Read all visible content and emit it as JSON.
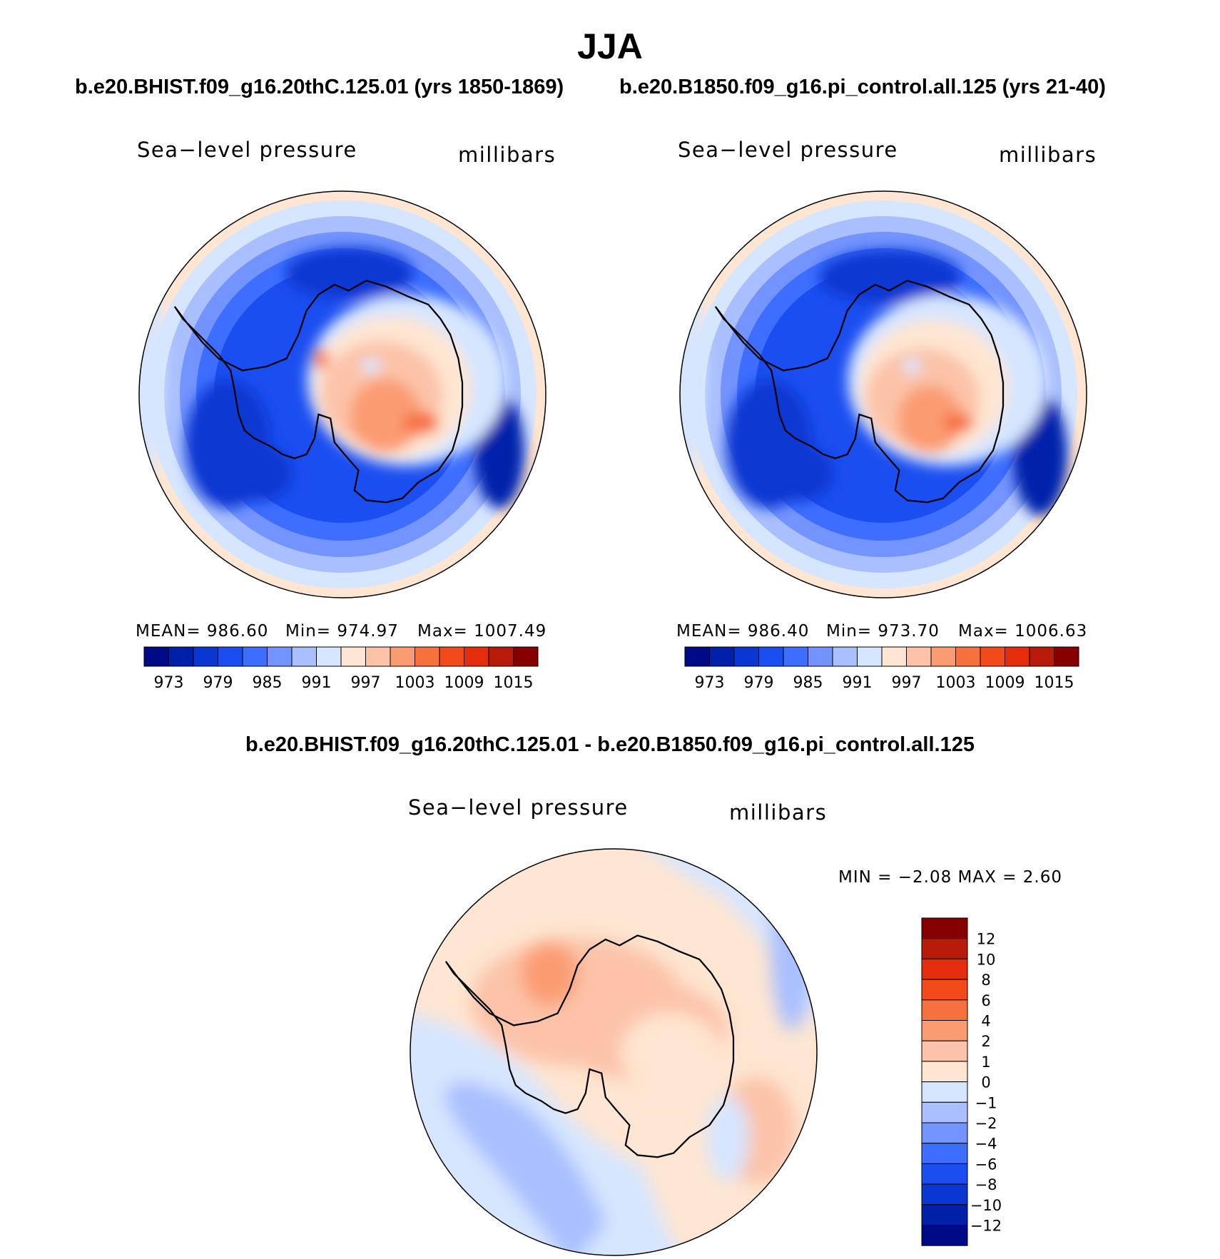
{
  "figure": {
    "season": "JJA",
    "case1_title": "b.e20.BHIST.f09_g16.20thC.125.01 (yrs 1850-1869)",
    "case2_title": "b.e20.B1850.f09_g16.pi_control.all.125 (yrs 21-40)",
    "diff_title": "b.e20.BHIST.f09_g16.20thC.125.01 - b.e20.B1850.f09_g16.pi_control.all.125"
  },
  "panels": {
    "left": {
      "variable": "Sea−level pressure",
      "units": "millibars",
      "mean_text": "MEAN=  986.60",
      "min_text": "Min=  974.97",
      "max_text": "Max=  1007.49"
    },
    "right": {
      "variable": "Sea−level pressure",
      "units": "millibars",
      "mean_text": "MEAN=  986.40",
      "min_text": "Min=  973.70",
      "max_text": "Max=  1006.63"
    },
    "diff": {
      "variable": "Sea−level pressure",
      "units": "millibars",
      "minmax_text": "MIN =    −2.08  MAX =     2.60"
    }
  },
  "colors": {
    "scale16": [
      "#000a87",
      "#0020aa",
      "#0a37d2",
      "#1b4ef0",
      "#3d6eff",
      "#7394ff",
      "#a9bfff",
      "#d6e6ff",
      "#fee6d2",
      "#fcc3a8",
      "#fb9b72",
      "#f7713f",
      "#f24a1a",
      "#e42d0c",
      "#b91b0b",
      "#870000"
    ]
  },
  "chart_data": [
    {
      "type": "heatmap",
      "id": "case1-slp",
      "title": "Sea−level pressure",
      "units": "millibars",
      "projection": "south polar stereographic",
      "mean": 986.6,
      "min": 974.97,
      "max": 1007.49,
      "colorbar_ticks": [
        "973",
        "979",
        "985",
        "991",
        "997",
        "1003",
        "1009",
        "1015"
      ],
      "colorbar_levels": [
        973,
        976,
        979,
        982,
        985,
        988,
        991,
        994,
        997,
        1000,
        1003,
        1006,
        1009,
        1012,
        1015
      ]
    },
    {
      "type": "heatmap",
      "id": "case2-slp",
      "title": "Sea−level pressure",
      "units": "millibars",
      "projection": "south polar stereographic",
      "mean": 986.4,
      "min": 973.7,
      "max": 1006.63,
      "colorbar_ticks": [
        "973",
        "979",
        "985",
        "991",
        "997",
        "1003",
        "1009",
        "1015"
      ],
      "colorbar_levels": [
        973,
        976,
        979,
        982,
        985,
        988,
        991,
        994,
        997,
        1000,
        1003,
        1006,
        1009,
        1012,
        1015
      ]
    },
    {
      "type": "heatmap",
      "id": "diff-slp",
      "title": "Sea−level pressure",
      "units": "millibars",
      "projection": "south polar stereographic",
      "min": -2.08,
      "max": 2.6,
      "colorbar_ticks": [
        "12",
        "10",
        "8",
        "6",
        "4",
        "2",
        "1",
        "0",
        "−1",
        "−2",
        "−4",
        "−6",
        "−8",
        "−10",
        "−12"
      ],
      "colorbar_levels": [
        -12,
        -10,
        -8,
        -6,
        -4,
        -2,
        -1,
        0,
        1,
        2,
        4,
        6,
        8,
        10,
        12
      ]
    }
  ]
}
